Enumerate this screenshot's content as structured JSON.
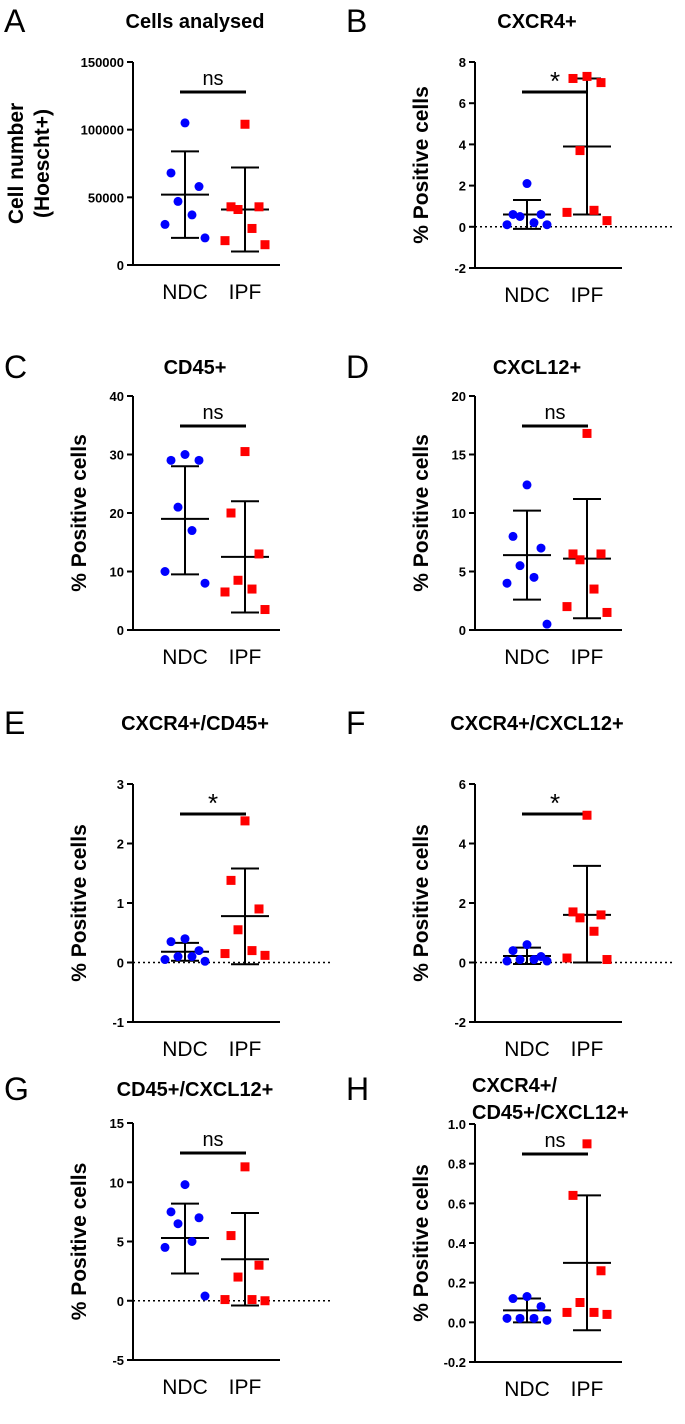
{
  "chart_data": [
    {
      "panel": "A",
      "type": "scatter",
      "title": "Cells analysed",
      "ylabel_lines": [
        "Cell number",
        "(Hoescht+)"
      ],
      "ylim": [
        0,
        150000
      ],
      "yticks": [
        0,
        50000,
        100000,
        150000
      ],
      "ytick_labels": [
        "0",
        "50000",
        "100000",
        "150000"
      ],
      "zero_line": false,
      "significance": "ns",
      "categories": [
        "NDC",
        "IPF"
      ],
      "series": [
        {
          "name": "NDC",
          "color": "#0000ff",
          "marker": "circle",
          "values": [
            105000,
            68000,
            58000,
            47000,
            37000,
            30000,
            20000
          ],
          "mean": 52000,
          "sd_low": 20000,
          "sd_high": 84000
        },
        {
          "name": "IPF",
          "color": "#ff0000",
          "marker": "square",
          "values": [
            104000,
            43000,
            43000,
            41000,
            27000,
            18000,
            15000
          ],
          "mean": 41000,
          "sd_low": 10000,
          "sd_high": 72000
        }
      ]
    },
    {
      "panel": "B",
      "type": "scatter",
      "title": "CXCR4+",
      "ylabel_lines": [
        "% Positive cells"
      ],
      "ylim": [
        -2,
        8
      ],
      "yticks": [
        -2,
        0,
        2,
        4,
        6,
        8
      ],
      "ytick_labels": [
        "-2",
        "0",
        "2",
        "4",
        "6",
        "8"
      ],
      "zero_line": true,
      "significance": "*",
      "categories": [
        "NDC",
        "IPF"
      ],
      "series": [
        {
          "name": "NDC",
          "color": "#0000ff",
          "marker": "circle",
          "values": [
            2.1,
            0.6,
            0.6,
            0.5,
            0.2,
            0.1,
            0.1
          ],
          "mean": 0.6,
          "sd_low": -0.1,
          "sd_high": 1.3
        },
        {
          "name": "IPF",
          "color": "#ff0000",
          "marker": "square",
          "values": [
            7.3,
            7.2,
            7.0,
            3.7,
            0.8,
            0.7,
            0.3
          ],
          "mean": 3.9,
          "sd_low": 0.6,
          "sd_high": 7.2
        }
      ]
    },
    {
      "panel": "C",
      "type": "scatter",
      "title": "CD45+",
      "ylabel_lines": [
        "% Positive cells"
      ],
      "ylim": [
        0,
        40
      ],
      "yticks": [
        0,
        10,
        20,
        30,
        40
      ],
      "ytick_labels": [
        "0",
        "10",
        "20",
        "30",
        "40"
      ],
      "zero_line": false,
      "significance": "ns",
      "categories": [
        "NDC",
        "IPF"
      ],
      "series": [
        {
          "name": "NDC",
          "color": "#0000ff",
          "marker": "circle",
          "values": [
            30,
            29,
            29,
            21,
            17,
            10,
            8
          ],
          "mean": 19,
          "sd_low": 9.5,
          "sd_high": 28
        },
        {
          "name": "IPF",
          "color": "#ff0000",
          "marker": "square",
          "values": [
            30.5,
            20,
            13,
            8.5,
            7,
            6.5,
            3.5
          ],
          "mean": 12.5,
          "sd_low": 3,
          "sd_high": 22
        }
      ]
    },
    {
      "panel": "D",
      "type": "scatter",
      "title": "CXCL12+",
      "ylabel_lines": [
        "% Positive cells"
      ],
      "ylim": [
        0,
        20
      ],
      "yticks": [
        0,
        5,
        10,
        15,
        20
      ],
      "ytick_labels": [
        "0",
        "5",
        "10",
        "15",
        "20"
      ],
      "zero_line": false,
      "significance": "ns",
      "categories": [
        "NDC",
        "IPF"
      ],
      "series": [
        {
          "name": "NDC",
          "color": "#0000ff",
          "marker": "circle",
          "values": [
            12.4,
            8,
            7,
            5.5,
            4.5,
            4,
            0.5
          ],
          "mean": 6.4,
          "sd_low": 2.6,
          "sd_high": 10.2
        },
        {
          "name": "IPF",
          "color": "#ff0000",
          "marker": "square",
          "values": [
            16.8,
            6.5,
            6.5,
            6,
            3.5,
            2,
            1.5
          ],
          "mean": 6.1,
          "sd_low": 1,
          "sd_high": 11.2
        }
      ]
    },
    {
      "panel": "E",
      "type": "scatter",
      "title": "CXCR4+/CD45+",
      "ylabel_lines": [
        "% Positive cells"
      ],
      "ylim": [
        -1,
        3
      ],
      "yticks": [
        -1,
        0,
        1,
        2,
        3
      ],
      "ytick_labels": [
        "-1",
        "0",
        "1",
        "2",
        "3"
      ],
      "zero_line": true,
      "significance": "*",
      "categories": [
        "NDC",
        "IPF"
      ],
      "series": [
        {
          "name": "NDC",
          "color": "#0000ff",
          "marker": "circle",
          "values": [
            0.4,
            0.35,
            0.2,
            0.1,
            0.1,
            0.05,
            0.02
          ],
          "mean": 0.18,
          "sd_low": 0.03,
          "sd_high": 0.33
        },
        {
          "name": "IPF",
          "color": "#ff0000",
          "marker": "square",
          "values": [
            2.38,
            1.38,
            0.9,
            0.55,
            0.2,
            0.15,
            0.12
          ],
          "mean": 0.78,
          "sd_low": -0.03,
          "sd_high": 1.58
        }
      ]
    },
    {
      "panel": "F",
      "type": "scatter",
      "title": "CXCR4+/CXCL12+",
      "ylabel_lines": [
        "% Positive cells"
      ],
      "ylim": [
        -2,
        6
      ],
      "yticks": [
        -2,
        0,
        2,
        4,
        6
      ],
      "ytick_labels": [
        "-2",
        "0",
        "2",
        "4",
        "6"
      ],
      "zero_line": true,
      "significance": "*",
      "categories": [
        "NDC",
        "IPF"
      ],
      "series": [
        {
          "name": "NDC",
          "color": "#0000ff",
          "marker": "circle",
          "values": [
            0.6,
            0.4,
            0.2,
            0.1,
            0.1,
            0.05,
            0.05
          ],
          "mean": 0.22,
          "sd_low": -0.05,
          "sd_high": 0.5
        },
        {
          "name": "IPF",
          "color": "#ff0000",
          "marker": "square",
          "values": [
            4.95,
            1.7,
            1.6,
            1.5,
            1.05,
            0.15,
            0.1
          ],
          "mean": 1.6,
          "sd_low": 0,
          "sd_high": 3.25
        }
      ]
    },
    {
      "panel": "G",
      "type": "scatter",
      "title": "CD45+/CXCL12+",
      "ylabel_lines": [
        "% Positive cells"
      ],
      "ylim": [
        -5,
        15
      ],
      "yticks": [
        -5,
        0,
        5,
        10,
        15
      ],
      "ytick_labels": [
        "-5",
        "0",
        "5",
        "10",
        "15"
      ],
      "zero_line": true,
      "significance": "ns",
      "categories": [
        "NDC",
        "IPF"
      ],
      "series": [
        {
          "name": "NDC",
          "color": "#0000ff",
          "marker": "circle",
          "values": [
            9.8,
            7.5,
            7,
            6.5,
            5,
            4.5,
            0.4
          ],
          "mean": 5.3,
          "sd_low": 2.3,
          "sd_high": 8.2
        },
        {
          "name": "IPF",
          "color": "#ff0000",
          "marker": "square",
          "values": [
            11.3,
            5.5,
            3,
            2,
            0.1,
            0.1,
            0
          ],
          "mean": 3.5,
          "sd_low": -0.4,
          "sd_high": 7.4
        }
      ]
    },
    {
      "panel": "H",
      "type": "scatter",
      "title_lines": [
        "CXCR4+/",
        "CD45+/CXCL12+"
      ],
      "ylabel_lines": [
        "% Positive cells"
      ],
      "ylim": [
        -0.2,
        1.0
      ],
      "yticks": [
        -0.2,
        0,
        0.2,
        0.4,
        0.6,
        0.8,
        1.0
      ],
      "ytick_labels": [
        "-0.2",
        "0.0",
        "0.2",
        "0.4",
        "0.6",
        "0.8",
        "1.0"
      ],
      "zero_line": false,
      "significance": "ns",
      "categories": [
        "NDC",
        "IPF"
      ],
      "series": [
        {
          "name": "NDC",
          "color": "#0000ff",
          "marker": "circle",
          "values": [
            0.13,
            0.12,
            0.08,
            0.02,
            0.02,
            0.02,
            0.01
          ],
          "mean": 0.06,
          "sd_low": 0.0,
          "sd_high": 0.12
        },
        {
          "name": "IPF",
          "color": "#ff0000",
          "marker": "square",
          "values": [
            0.9,
            0.64,
            0.26,
            0.1,
            0.05,
            0.05,
            0.04
          ],
          "mean": 0.3,
          "sd_low": -0.04,
          "sd_high": 0.64
        }
      ]
    }
  ]
}
